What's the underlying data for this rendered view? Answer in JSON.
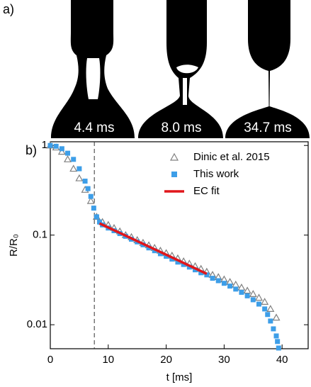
{
  "panel_labels": [
    "a)",
    "b)"
  ],
  "image_labels": [
    "4.4 ms",
    "8.0 ms",
    "34.7 ms"
  ],
  "chart_data": {
    "type": "scatter",
    "x_label": "t [ms]",
    "y_label": "R/R₀",
    "xlim": [
      0,
      44.5
    ],
    "xticks": [
      0,
      10,
      20,
      30,
      40
    ],
    "ylim": [
      0.0054,
      1.1
    ],
    "yticks": [
      0.01,
      0.1,
      1
    ],
    "yscale": "log",
    "vline": 7.6,
    "legend": "upper right",
    "series": [
      {
        "name": "Dinic et al. 2015",
        "color": "#808080",
        "marker": "triangle",
        "x": [
          0,
          1,
          2,
          3,
          4,
          5,
          6,
          7,
          8,
          9,
          10,
          11,
          12,
          13,
          14,
          15,
          16,
          17,
          18,
          19,
          20,
          21,
          22,
          23,
          24,
          25,
          26,
          27,
          28,
          29,
          30,
          31,
          32,
          33,
          34,
          35,
          36,
          37,
          38,
          39
        ],
        "values": [
          1.0,
          0.95,
          0.85,
          0.7,
          0.55,
          0.43,
          0.32,
          0.24,
          0.16,
          0.14,
          0.13,
          0.12,
          0.11,
          0.1,
          0.095,
          0.088,
          0.082,
          0.077,
          0.072,
          0.067,
          0.063,
          0.059,
          0.055,
          0.051,
          0.048,
          0.045,
          0.042,
          0.039,
          0.036,
          0.034,
          0.032,
          0.03,
          0.028,
          0.026,
          0.024,
          0.022,
          0.02,
          0.018,
          0.015,
          0.012
        ]
      },
      {
        "name": "This work",
        "color": "#3d9ee8",
        "marker": "square",
        "x": [
          0,
          1,
          2,
          3,
          4,
          5,
          6,
          6.5,
          7,
          7.5,
          8,
          8.5,
          9,
          10,
          11,
          12,
          13,
          14,
          15,
          16,
          17,
          18,
          19,
          20,
          21,
          22,
          23,
          24,
          25,
          26,
          27,
          28,
          29,
          30,
          31,
          32,
          33,
          34,
          35,
          36,
          37,
          37.5,
          38,
          38.5,
          39,
          39.2,
          39.4
        ],
        "values": [
          1.0,
          0.98,
          0.92,
          0.82,
          0.7,
          0.55,
          0.4,
          0.33,
          0.27,
          0.2,
          0.16,
          0.14,
          0.13,
          0.12,
          0.112,
          0.104,
          0.097,
          0.09,
          0.084,
          0.078,
          0.072,
          0.067,
          0.062,
          0.058,
          0.054,
          0.05,
          0.047,
          0.044,
          0.041,
          0.038,
          0.036,
          0.033,
          0.031,
          0.029,
          0.027,
          0.025,
          0.023,
          0.021,
          0.019,
          0.017,
          0.015,
          0.013,
          0.011,
          0.009,
          0.0075,
          0.0065,
          0.0055
        ]
      },
      {
        "name": "EC fit",
        "color": "#e0161b",
        "marker": "line",
        "x": [
          8.5,
          27
        ],
        "values": [
          0.135,
          0.037
        ]
      }
    ]
  }
}
